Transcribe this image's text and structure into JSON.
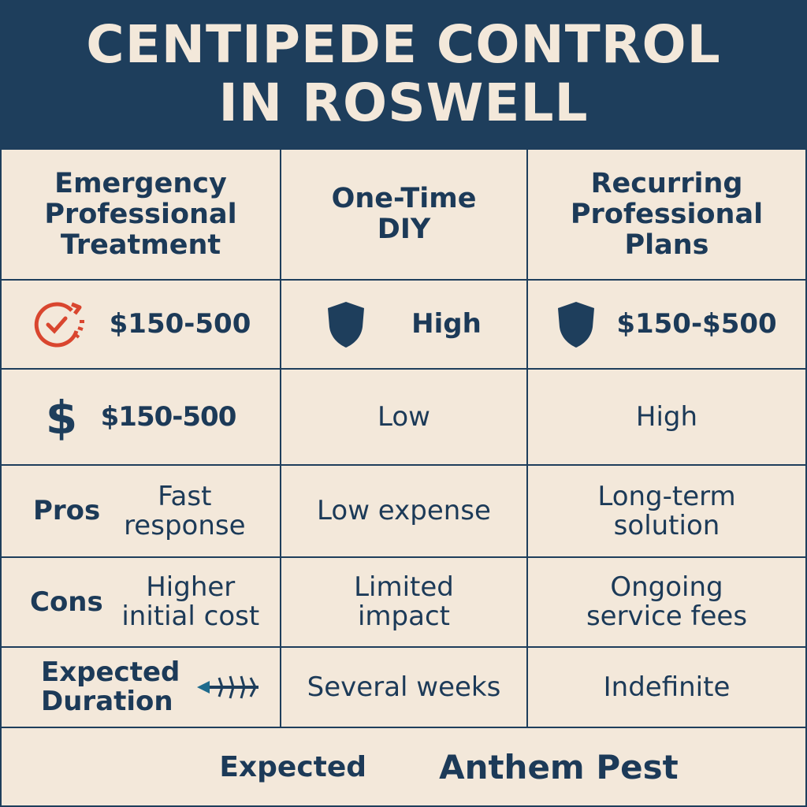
{
  "title": "CENTIPEDE CONTROL IN ROSWELL",
  "headers": [
    "Emergency Professional Treatment",
    "One-Time DIY",
    "Recurring Professional Plans"
  ],
  "row_cost": {
    "col1": "$150-500",
    "col2": "High",
    "col3": "$150-$500",
    "icons": [
      "clock-icon",
      "shield-icon",
      "shield-icon"
    ]
  },
  "row_price": {
    "col1": "$150-500",
    "col2": "Low",
    "col3": "High",
    "icons": [
      "dollar-icon"
    ]
  },
  "row_pros": {
    "label": "Pros",
    "col1": "Fast response",
    "col2": "Low expense",
    "col3": "Long-term solution"
  },
  "row_cons": {
    "label": "Cons",
    "col1": "Higher initial cost",
    "col2": "Limited impact",
    "col3": "Ongoing service fees"
  },
  "row_duration": {
    "label": "Expected Duration",
    "col2": "Several weeks",
    "col3": "Indefinite",
    "icons": [
      "centipede-icon"
    ]
  },
  "footer": {
    "label": "Expected",
    "brand": "Anthem Pest"
  },
  "colors": {
    "navy": "#1e3e5c",
    "cream": "#f3e8da",
    "accent_red": "#d9462f"
  }
}
